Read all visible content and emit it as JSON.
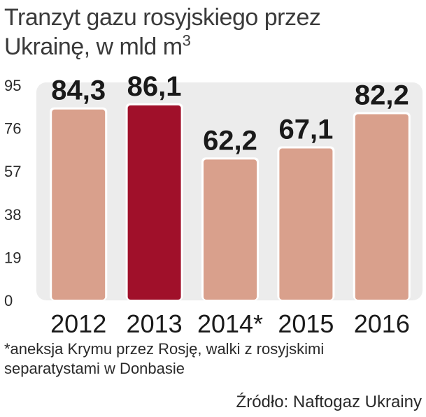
{
  "title": {
    "line1": "Tranzyt gazu rosyjskiego przez",
    "line2": "Ukrainę, w mld m",
    "sup": "3"
  },
  "chart_data": {
    "type": "bar",
    "categories": [
      "2012",
      "2013",
      "2014*",
      "2015",
      "2016"
    ],
    "values": [
      84.3,
      86.1,
      62.2,
      67.1,
      82.2
    ],
    "value_labels": [
      "84,3",
      "86,1",
      "62,2",
      "67,1",
      "82,2"
    ],
    "highlight_index": 1,
    "yticks": [
      0,
      19,
      38,
      57,
      76,
      95
    ],
    "ylim": [
      0,
      95
    ],
    "grid": false,
    "colors": {
      "bar": "#d9a08c",
      "highlight": "#a0102a",
      "plot_background": "#ececec"
    }
  },
  "footnote": "*aneksja Krymu przez Rosję, walki z rosyjskimi separatystami w Donbasie",
  "source": "Źródło: Naftogaz Ukrainy"
}
